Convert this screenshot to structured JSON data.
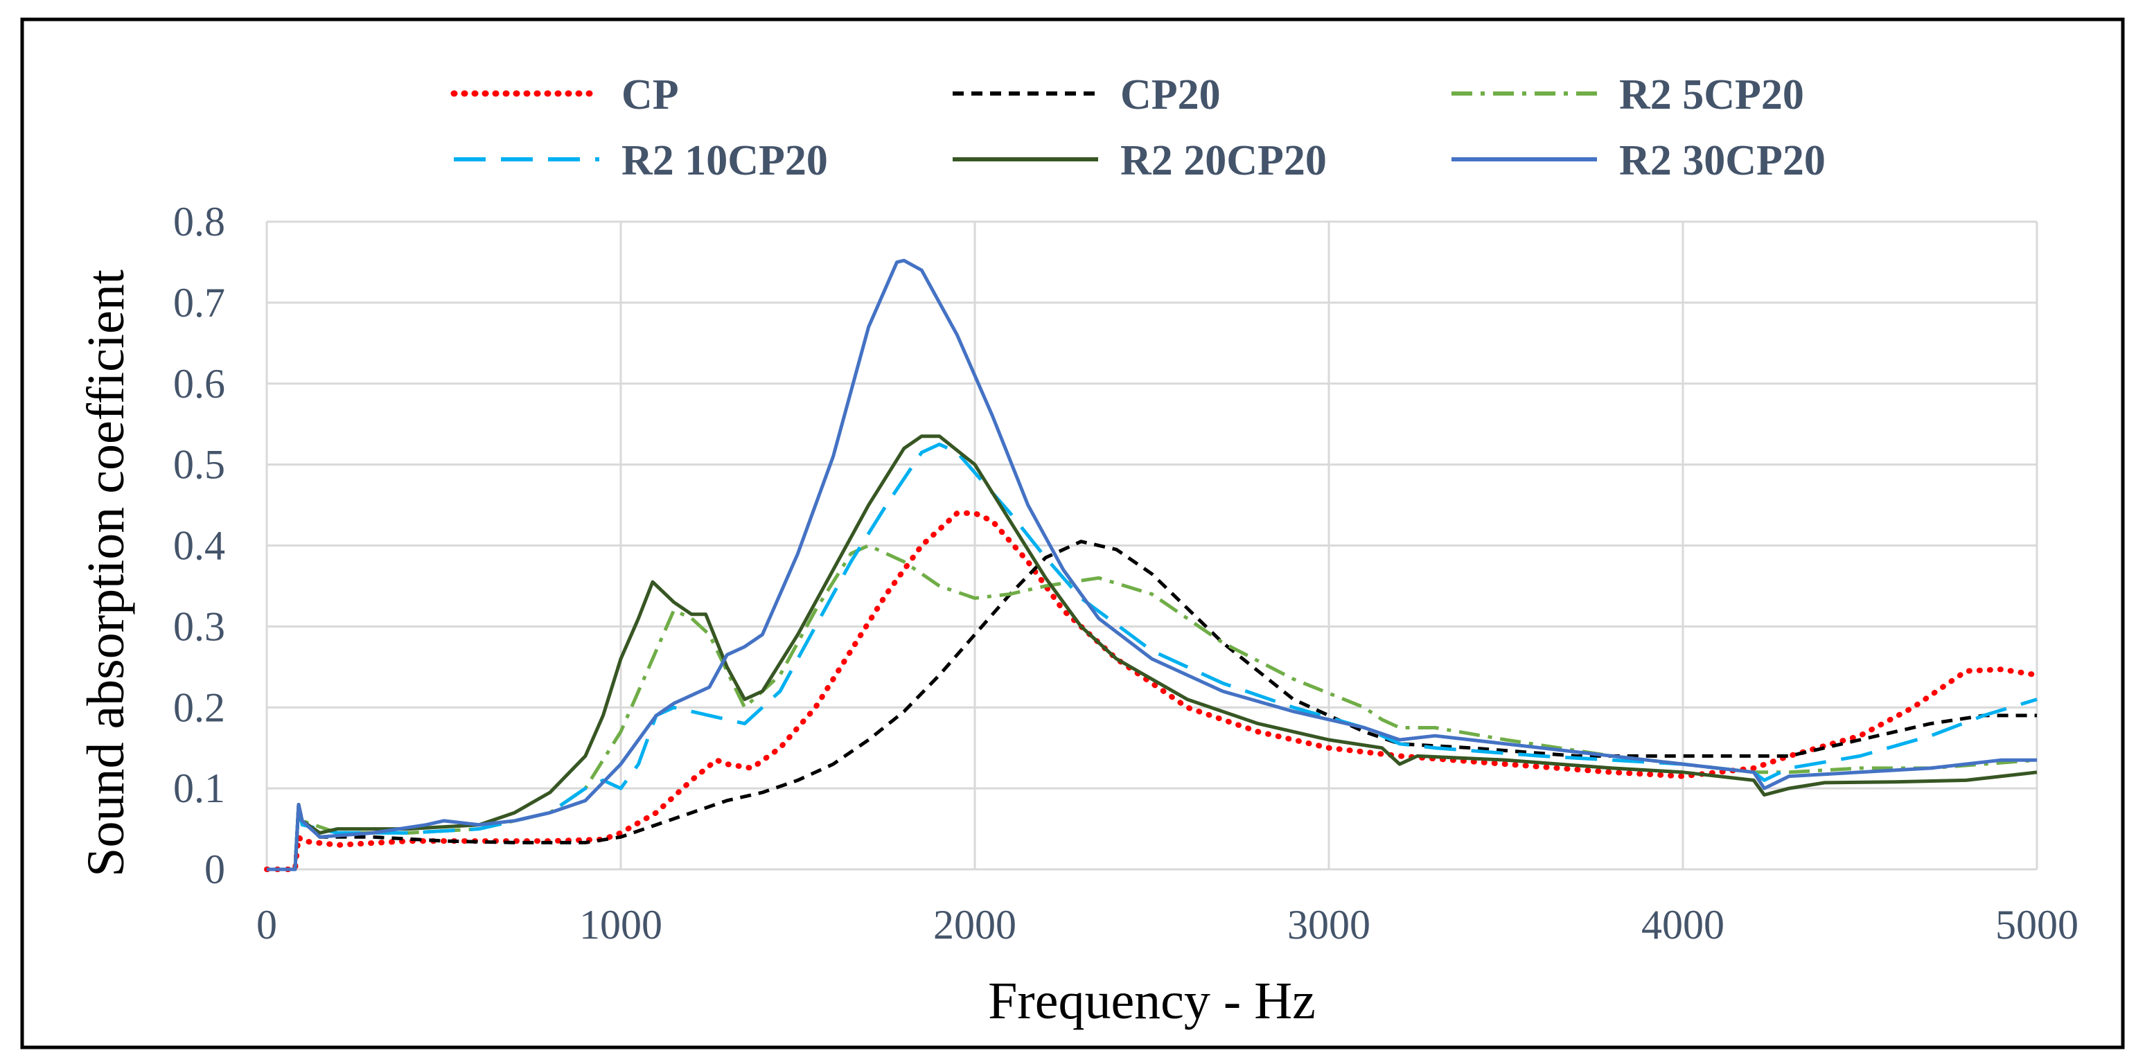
{
  "chart_data": {
    "type": "line",
    "title": "",
    "xlabel": "Frequency - Hz",
    "ylabel": "Sound absorption coefficient",
    "xlim": [
      0,
      5000
    ],
    "ylim": [
      0,
      0.8
    ],
    "xticks": [
      0,
      1000,
      2000,
      3000,
      4000,
      5000
    ],
    "xtick_labels": [
      "0",
      "1000",
      "2000",
      "3000",
      "4000",
      "5000"
    ],
    "yticks": [
      0,
      0.1,
      0.2,
      0.3,
      0.4,
      0.5,
      0.6,
      0.7,
      0.8
    ],
    "ytick_labels": [
      "0",
      "0.1",
      "0.2",
      "0.3",
      "0.4",
      "0.5",
      "0.6",
      "0.7",
      "0.8"
    ],
    "grid": true,
    "legend_position": "top",
    "series": [
      {
        "name": "CP",
        "color": "#ff0000",
        "style": "dotted",
        "points": [
          [
            0,
            0
          ],
          [
            80,
            0
          ],
          [
            90,
            0.04
          ],
          [
            100,
            0.035
          ],
          [
            200,
            0.03
          ],
          [
            400,
            0.035
          ],
          [
            600,
            0.035
          ],
          [
            800,
            0.035
          ],
          [
            950,
            0.037
          ],
          [
            1000,
            0.045
          ],
          [
            1100,
            0.07
          ],
          [
            1200,
            0.11
          ],
          [
            1270,
            0.135
          ],
          [
            1300,
            0.13
          ],
          [
            1370,
            0.125
          ],
          [
            1450,
            0.15
          ],
          [
            1550,
            0.2
          ],
          [
            1650,
            0.27
          ],
          [
            1750,
            0.34
          ],
          [
            1850,
            0.4
          ],
          [
            1950,
            0.44
          ],
          [
            2000,
            0.44
          ],
          [
            2050,
            0.43
          ],
          [
            2150,
            0.38
          ],
          [
            2250,
            0.32
          ],
          [
            2400,
            0.26
          ],
          [
            2600,
            0.2
          ],
          [
            2800,
            0.17
          ],
          [
            3000,
            0.15
          ],
          [
            3200,
            0.14
          ],
          [
            3500,
            0.13
          ],
          [
            3800,
            0.12
          ],
          [
            4000,
            0.115
          ],
          [
            4200,
            0.125
          ],
          [
            4300,
            0.14
          ],
          [
            4500,
            0.165
          ],
          [
            4650,
            0.2
          ],
          [
            4800,
            0.245
          ],
          [
            4900,
            0.247
          ],
          [
            5000,
            0.24
          ]
        ]
      },
      {
        "name": "CP20",
        "color": "#000000",
        "style": "dashed",
        "points": [
          [
            0,
            0
          ],
          [
            80,
            0
          ],
          [
            90,
            0.08
          ],
          [
            100,
            0.06
          ],
          [
            150,
            0.04
          ],
          [
            300,
            0.04
          ],
          [
            500,
            0.035
          ],
          [
            700,
            0.033
          ],
          [
            900,
            0.033
          ],
          [
            1000,
            0.04
          ],
          [
            1100,
            0.055
          ],
          [
            1200,
            0.07
          ],
          [
            1300,
            0.085
          ],
          [
            1400,
            0.095
          ],
          [
            1500,
            0.11
          ],
          [
            1600,
            0.13
          ],
          [
            1700,
            0.16
          ],
          [
            1800,
            0.195
          ],
          [
            1900,
            0.24
          ],
          [
            2000,
            0.29
          ],
          [
            2100,
            0.34
          ],
          [
            2200,
            0.385
          ],
          [
            2300,
            0.405
          ],
          [
            2400,
            0.395
          ],
          [
            2500,
            0.365
          ],
          [
            2700,
            0.28
          ],
          [
            2900,
            0.21
          ],
          [
            3100,
            0.17
          ],
          [
            3200,
            0.155
          ],
          [
            3400,
            0.15
          ],
          [
            3700,
            0.14
          ],
          [
            4000,
            0.14
          ],
          [
            4200,
            0.14
          ],
          [
            4300,
            0.14
          ],
          [
            4500,
            0.16
          ],
          [
            4700,
            0.18
          ],
          [
            4850,
            0.19
          ],
          [
            5000,
            0.19
          ]
        ]
      },
      {
        "name": "R2 5CP20",
        "color": "#70ad47",
        "style": "dashdot",
        "points": [
          [
            0,
            0
          ],
          [
            80,
            0
          ],
          [
            90,
            0.08
          ],
          [
            100,
            0.06
          ],
          [
            200,
            0.045
          ],
          [
            400,
            0.045
          ],
          [
            600,
            0.05
          ],
          [
            800,
            0.07
          ],
          [
            900,
            0.1
          ],
          [
            1000,
            0.17
          ],
          [
            1100,
            0.27
          ],
          [
            1150,
            0.32
          ],
          [
            1200,
            0.31
          ],
          [
            1250,
            0.29
          ],
          [
            1350,
            0.2
          ],
          [
            1450,
            0.24
          ],
          [
            1550,
            0.32
          ],
          [
            1650,
            0.39
          ],
          [
            1700,
            0.4
          ],
          [
            1800,
            0.38
          ],
          [
            1900,
            0.35
          ],
          [
            2000,
            0.335
          ],
          [
            2100,
            0.34
          ],
          [
            2200,
            0.35
          ],
          [
            2350,
            0.36
          ],
          [
            2500,
            0.34
          ],
          [
            2700,
            0.28
          ],
          [
            2900,
            0.235
          ],
          [
            3100,
            0.2
          ],
          [
            3150,
            0.185
          ],
          [
            3200,
            0.175
          ],
          [
            3300,
            0.175
          ],
          [
            3500,
            0.16
          ],
          [
            3800,
            0.14
          ],
          [
            4000,
            0.13
          ],
          [
            4200,
            0.12
          ],
          [
            4300,
            0.12
          ],
          [
            4500,
            0.125
          ],
          [
            4700,
            0.125
          ],
          [
            5000,
            0.135
          ]
        ]
      },
      {
        "name": "R2 10CP20",
        "color": "#00b0f0",
        "style": "longdash",
        "points": [
          [
            0,
            0
          ],
          [
            80,
            0
          ],
          [
            90,
            0.08
          ],
          [
            100,
            0.055
          ],
          [
            200,
            0.045
          ],
          [
            400,
            0.045
          ],
          [
            600,
            0.05
          ],
          [
            800,
            0.07
          ],
          [
            900,
            0.1
          ],
          [
            950,
            0.11
          ],
          [
            1000,
            0.1
          ],
          [
            1050,
            0.13
          ],
          [
            1100,
            0.19
          ],
          [
            1150,
            0.2
          ],
          [
            1250,
            0.19
          ],
          [
            1350,
            0.18
          ],
          [
            1450,
            0.22
          ],
          [
            1550,
            0.3
          ],
          [
            1650,
            0.38
          ],
          [
            1750,
            0.45
          ],
          [
            1850,
            0.515
          ],
          [
            1900,
            0.525
          ],
          [
            1950,
            0.515
          ],
          [
            2000,
            0.49
          ],
          [
            2100,
            0.44
          ],
          [
            2200,
            0.385
          ],
          [
            2300,
            0.335
          ],
          [
            2500,
            0.27
          ],
          [
            2700,
            0.23
          ],
          [
            2900,
            0.2
          ],
          [
            3100,
            0.175
          ],
          [
            3200,
            0.155
          ],
          [
            3300,
            0.15
          ],
          [
            3600,
            0.14
          ],
          [
            4000,
            0.13
          ],
          [
            4200,
            0.12
          ],
          [
            4230,
            0.11
          ],
          [
            4300,
            0.125
          ],
          [
            4500,
            0.14
          ],
          [
            4700,
            0.165
          ],
          [
            4850,
            0.19
          ],
          [
            5000,
            0.21
          ]
        ]
      },
      {
        "name": "R2 20CP20",
        "color": "#375623",
        "style": "solid",
        "points": [
          [
            0,
            0
          ],
          [
            80,
            0
          ],
          [
            90,
            0.08
          ],
          [
            100,
            0.06
          ],
          [
            150,
            0.045
          ],
          [
            200,
            0.05
          ],
          [
            400,
            0.05
          ],
          [
            600,
            0.055
          ],
          [
            700,
            0.07
          ],
          [
            800,
            0.095
          ],
          [
            900,
            0.14
          ],
          [
            950,
            0.19
          ],
          [
            1000,
            0.26
          ],
          [
            1050,
            0.31
          ],
          [
            1090,
            0.355
          ],
          [
            1150,
            0.33
          ],
          [
            1200,
            0.315
          ],
          [
            1240,
            0.315
          ],
          [
            1300,
            0.25
          ],
          [
            1350,
            0.21
          ],
          [
            1400,
            0.22
          ],
          [
            1500,
            0.29
          ],
          [
            1600,
            0.37
          ],
          [
            1700,
            0.45
          ],
          [
            1800,
            0.52
          ],
          [
            1850,
            0.535
          ],
          [
            1900,
            0.535
          ],
          [
            2000,
            0.5
          ],
          [
            2100,
            0.43
          ],
          [
            2200,
            0.36
          ],
          [
            2300,
            0.3
          ],
          [
            2400,
            0.26
          ],
          [
            2600,
            0.21
          ],
          [
            2800,
            0.18
          ],
          [
            3000,
            0.16
          ],
          [
            3150,
            0.15
          ],
          [
            3200,
            0.13
          ],
          [
            3250,
            0.14
          ],
          [
            3500,
            0.135
          ],
          [
            3800,
            0.125
          ],
          [
            4000,
            0.12
          ],
          [
            4200,
            0.11
          ],
          [
            4230,
            0.092
          ],
          [
            4300,
            0.1
          ],
          [
            4400,
            0.107
          ],
          [
            4600,
            0.108
          ],
          [
            4800,
            0.11
          ],
          [
            4900,
            0.115
          ],
          [
            5000,
            0.12
          ]
        ]
      },
      {
        "name": "R2 30CP20",
        "color": "#4472c4",
        "style": "solid",
        "points": [
          [
            0,
            0
          ],
          [
            80,
            0
          ],
          [
            90,
            0.08
          ],
          [
            100,
            0.06
          ],
          [
            150,
            0.04
          ],
          [
            300,
            0.045
          ],
          [
            450,
            0.055
          ],
          [
            500,
            0.06
          ],
          [
            600,
            0.055
          ],
          [
            700,
            0.06
          ],
          [
            800,
            0.07
          ],
          [
            900,
            0.085
          ],
          [
            1000,
            0.13
          ],
          [
            1100,
            0.19
          ],
          [
            1150,
            0.205
          ],
          [
            1250,
            0.225
          ],
          [
            1300,
            0.265
          ],
          [
            1350,
            0.275
          ],
          [
            1400,
            0.29
          ],
          [
            1500,
            0.39
          ],
          [
            1600,
            0.51
          ],
          [
            1700,
            0.67
          ],
          [
            1780,
            0.75
          ],
          [
            1800,
            0.752
          ],
          [
            1850,
            0.74
          ],
          [
            1950,
            0.66
          ],
          [
            2050,
            0.56
          ],
          [
            2150,
            0.45
          ],
          [
            2250,
            0.37
          ],
          [
            2350,
            0.31
          ],
          [
            2500,
            0.26
          ],
          [
            2700,
            0.22
          ],
          [
            2900,
            0.195
          ],
          [
            3100,
            0.175
          ],
          [
            3200,
            0.16
          ],
          [
            3300,
            0.165
          ],
          [
            3600,
            0.15
          ],
          [
            4000,
            0.13
          ],
          [
            4200,
            0.12
          ],
          [
            4230,
            0.1
          ],
          [
            4300,
            0.115
          ],
          [
            4500,
            0.12
          ],
          [
            4700,
            0.125
          ],
          [
            4900,
            0.135
          ],
          [
            5000,
            0.135
          ]
        ]
      }
    ]
  }
}
